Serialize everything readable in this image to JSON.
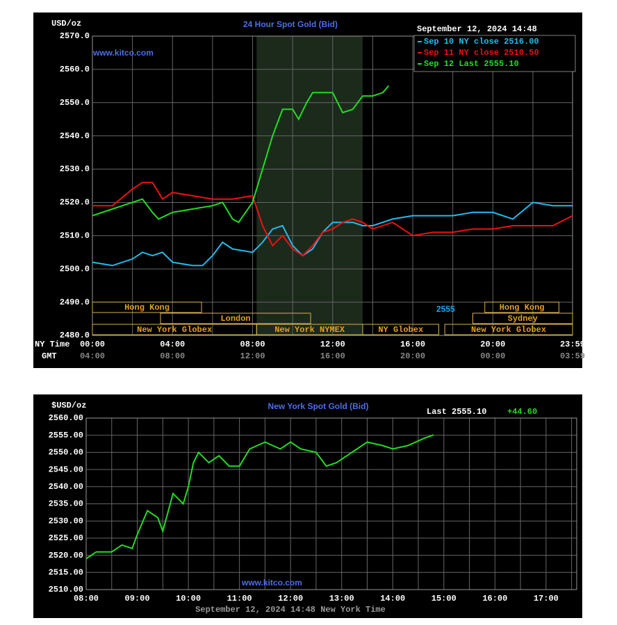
{
  "chart_data": [
    {
      "type": "line",
      "title": "24 Hour Spot Gold (Bid)",
      "ylabel": "USD/oz",
      "watermark": "www.kitco.com",
      "date_label": "September 12, 2024 14:48",
      "xlabel": "NY Time",
      "x2label": "GMT",
      "xlim": [
        0,
        23.98
      ],
      "ylim": [
        2480,
        2570
      ],
      "xticks": [
        {
          "value": 0,
          "label": "00:00"
        },
        {
          "value": 4,
          "label": "04:00"
        },
        {
          "value": 8,
          "label": "08:00"
        },
        {
          "value": 12,
          "label": "12:00"
        },
        {
          "value": 16,
          "label": "16:00"
        },
        {
          "value": 20,
          "label": "20:00"
        },
        {
          "value": 23.98,
          "label": "23:59"
        }
      ],
      "x2tick_labels": [
        "04:00",
        "08:00",
        "12:00",
        "16:00",
        "20:00",
        "00:00",
        "03:59"
      ],
      "xminor": [
        2,
        6,
        10,
        14,
        18,
        22
      ],
      "yticks": [
        {
          "value": 2480,
          "label": "2480.0"
        },
        {
          "value": 2490,
          "label": "2490.0"
        },
        {
          "value": 2500,
          "label": "2500.0"
        },
        {
          "value": 2510,
          "label": "2510.0"
        },
        {
          "value": 2520,
          "label": "2520.0"
        },
        {
          "value": 2530,
          "label": "2530.0"
        },
        {
          "value": 2540,
          "label": "2540.0"
        },
        {
          "value": 2550,
          "label": "2550.0"
        },
        {
          "value": 2560,
          "label": "2560.0"
        },
        {
          "value": 2570,
          "label": "2570.0"
        }
      ],
      "grid": true,
      "shaded_x": [
        8.2,
        13.5
      ],
      "legend": "top-right",
      "series": [
        {
          "name": "Sep 10 NY close 2516.00",
          "color": "#22bbee",
          "x": [
            0,
            1,
            2,
            2.5,
            3,
            3.5,
            4,
            5,
            5.5,
            6,
            6.5,
            7,
            8,
            8.5,
            9,
            9.5,
            10,
            10.5,
            11,
            11.5,
            12,
            12.5,
            13,
            13.5,
            14,
            15,
            16,
            17,
            18,
            19,
            20,
            21,
            22,
            23,
            23.98
          ],
          "values": [
            2502,
            2501,
            2503,
            2505,
            2504,
            2505,
            2502,
            2501,
            2501,
            2504,
            2508,
            2506,
            2505,
            2508,
            2512,
            2513,
            2507,
            2504,
            2506,
            2511,
            2514,
            2514,
            2514,
            2513,
            2513,
            2515,
            2516,
            2516,
            2516,
            2517,
            2517,
            2515,
            2520,
            2519,
            2519
          ]
        },
        {
          "name": "Sep 11 NY close 2510.50",
          "color": "#ee1111",
          "x": [
            0,
            1,
            2,
            2.5,
            3,
            3.5,
            4,
            5,
            6,
            7,
            8,
            8.5,
            9,
            9.5,
            10,
            10.5,
            11,
            11.5,
            12,
            12.5,
            13,
            13.5,
            14,
            15,
            16,
            17,
            18,
            19,
            20,
            21,
            22,
            23,
            23.98
          ],
          "values": [
            2519,
            2519,
            2524,
            2526,
            2526,
            2521,
            2523,
            2522,
            2521,
            2521,
            2522,
            2513,
            2507,
            2510,
            2506,
            2504,
            2507,
            2511,
            2512,
            2514,
            2515,
            2514,
            2512,
            2514,
            2510,
            2511,
            2511,
            2512,
            2512,
            2513,
            2513,
            2513,
            2516
          ]
        },
        {
          "name": "Sep 12 Last 2555.10",
          "color": "#22dd22",
          "x": [
            0,
            1,
            2,
            2.5,
            3,
            3.3,
            4,
            5,
            6,
            6.5,
            7,
            7.3,
            8,
            8.5,
            9,
            9.5,
            10,
            10.3,
            10.7,
            11,
            12,
            12.5,
            13,
            13.5,
            14,
            14.5,
            14.8
          ],
          "values": [
            2516,
            2518,
            2520,
            2521,
            2517,
            2515,
            2517,
            2518,
            2519,
            2520,
            2515,
            2514,
            2520,
            2530,
            2540,
            2548,
            2548,
            2545,
            2550,
            2553,
            2553,
            2547,
            2548,
            2552,
            2552,
            2553,
            2555.1
          ]
        }
      ],
      "sessions": [
        {
          "name": "Hong Kong",
          "start": 0,
          "end": 5.45,
          "row": 0
        },
        {
          "name": "London",
          "start": 3.4,
          "end": 10.9,
          "row": 1
        },
        {
          "name": "New York Globex",
          "start": 0,
          "end": 8.2,
          "row": 2
        },
        {
          "name": "New York NYMEX",
          "start": 8.2,
          "end": 13.5,
          "row": 2
        },
        {
          "name": "NY Globex",
          "start": 13.5,
          "end": 17.3,
          "row": 2
        },
        {
          "name": "Hong Kong",
          "start": 19.6,
          "end": 23.3,
          "row": 0
        },
        {
          "name": "Sydney",
          "start": 19,
          "end": 23.98,
          "row": 1
        },
        {
          "name": "New York Globex",
          "start": 17.6,
          "end": 23.98,
          "row": 2
        }
      ],
      "annotations": [
        {
          "text": "2555",
          "color": "#1aa8f0"
        }
      ]
    },
    {
      "type": "line",
      "title": "New York Spot Gold (Bid)",
      "ylabel": "$USD/oz",
      "watermark": "www.kitco.com",
      "xlabel": "September 12, 2024 14:48 New York Time",
      "xlim": [
        8,
        17.6
      ],
      "ylim": [
        2510,
        2560
      ],
      "xticks": [
        {
          "value": 8,
          "label": "08:00"
        },
        {
          "value": 9,
          "label": "09:00"
        },
        {
          "value": 10,
          "label": "10:00"
        },
        {
          "value": 11,
          "label": "11:00"
        },
        {
          "value": 12,
          "label": "12:00"
        },
        {
          "value": 13,
          "label": "13:00"
        },
        {
          "value": 14,
          "label": "14:00"
        },
        {
          "value": 15,
          "label": "15:00"
        },
        {
          "value": 16,
          "label": "16:00"
        },
        {
          "value": 17,
          "label": "17:00"
        }
      ],
      "xminor": [
        8.5,
        9.5,
        10.5,
        11.5,
        12.5,
        13.5,
        14.5,
        15.5,
        16.5,
        17.5
      ],
      "yticks": [
        {
          "value": 2510,
          "label": "2510.00"
        },
        {
          "value": 2515,
          "label": "2515.00"
        },
        {
          "value": 2520,
          "label": "2520.00"
        },
        {
          "value": 2525,
          "label": "2525.00"
        },
        {
          "value": 2530,
          "label": "2530.00"
        },
        {
          "value": 2535,
          "label": "2535.00"
        },
        {
          "value": 2540,
          "label": "2540.00"
        },
        {
          "value": 2545,
          "label": "2545.00"
        },
        {
          "value": 2550,
          "label": "2550.00"
        },
        {
          "value": 2555,
          "label": "2555.00"
        },
        {
          "value": 2560,
          "label": "2560.00"
        }
      ],
      "grid": true,
      "series": [
        {
          "color": "#22dd22",
          "x": [
            8.0,
            8.2,
            8.5,
            8.7,
            8.9,
            9.0,
            9.2,
            9.4,
            9.5,
            9.7,
            9.9,
            10.0,
            10.1,
            10.2,
            10.4,
            10.6,
            10.8,
            11.0,
            11.2,
            11.5,
            11.8,
            12.0,
            12.2,
            12.5,
            12.7,
            12.9,
            13.1,
            13.3,
            13.5,
            13.8,
            14.0,
            14.3,
            14.6,
            14.8
          ],
          "values": [
            2519,
            2521,
            2521,
            2523,
            2522,
            2526,
            2533,
            2531,
            2527,
            2538,
            2535,
            2540,
            2547,
            2550,
            2547,
            2549,
            2546,
            2546,
            2551,
            2553,
            2551,
            2553,
            2551,
            2550,
            2546,
            2547,
            2549,
            2551,
            2553,
            2552,
            2551,
            2552,
            2554,
            2555.1
          ]
        }
      ],
      "annotations": [
        {
          "text": "Last 2555.10",
          "color": "#ffffff"
        },
        {
          "text": "+44.60",
          "color": "#22dd22"
        }
      ]
    }
  ]
}
